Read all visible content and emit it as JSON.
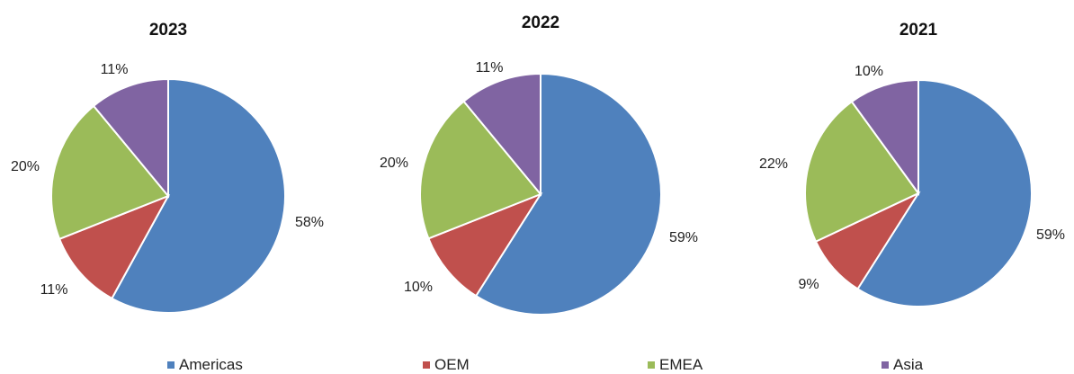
{
  "chart_data": [
    {
      "type": "pie",
      "title": "2023",
      "categories": [
        "Americas",
        "OEM",
        "EMEA",
        "Asia"
      ],
      "values": [
        58,
        11,
        20,
        11
      ],
      "labels": [
        "58%",
        "11%",
        "20%",
        "11%"
      ]
    },
    {
      "type": "pie",
      "title": "2022",
      "categories": [
        "Americas",
        "OEM",
        "EMEA",
        "Asia"
      ],
      "values": [
        59,
        10,
        20,
        11
      ],
      "labels": [
        "59%",
        "10%",
        "20%",
        "11%"
      ]
    },
    {
      "type": "pie",
      "title": "2021",
      "categories": [
        "Americas",
        "OEM",
        "EMEA",
        "Asia"
      ],
      "values": [
        59,
        9,
        22,
        10
      ],
      "labels": [
        "59%",
        "9%",
        "22%",
        "10%"
      ]
    }
  ],
  "legend": {
    "placement": "bottom",
    "items": [
      {
        "label": "Americas",
        "color": "#4f81bd"
      },
      {
        "label": "OEM",
        "color": "#c0504d"
      },
      {
        "label": "EMEA",
        "color": "#9bbb59"
      },
      {
        "label": "Asia",
        "color": "#8064a2"
      }
    ]
  }
}
